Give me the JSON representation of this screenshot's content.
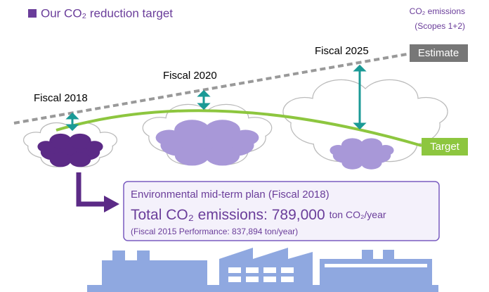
{
  "title": "Our CO₂ reduction target",
  "legend": {
    "line1": "CO₂ emissions",
    "line2": "(Scopes 1+2)",
    "estimate": "Estimate",
    "target": "Target"
  },
  "milestones": [
    "Fiscal 2018",
    "Fiscal 2020",
    "Fiscal 2025"
  ],
  "plan": {
    "heading": "Environmental mid-term plan (Fiscal 2018)",
    "total": "Total CO₂ emissions: 789,000",
    "unit": "ton CO₂/year",
    "note": "(Fiscal 2015 Performance: 837,894 ton/year)"
  }
}
